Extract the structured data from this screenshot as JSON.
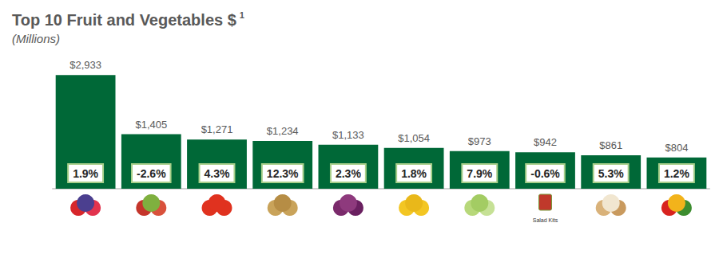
{
  "chart_data": {
    "type": "bar",
    "title": "Top 10 Fruit and Vegetables $",
    "title_note": "1",
    "subtitle": "(Millions)",
    "categories": [
      null,
      null,
      null,
      null,
      null,
      null,
      null,
      "Salad Kits",
      null,
      null
    ],
    "values": [
      2933,
      1405,
      1271,
      1234,
      1133,
      1054,
      973,
      942,
      861,
      804
    ],
    "value_labels": [
      "$2,933",
      "$1,405",
      "$1,271",
      "$1,234",
      "$1,133",
      "$1,054",
      "$973",
      "$942",
      "$861",
      "$804"
    ],
    "annotations": [
      "1.9%",
      "-2.6%",
      "4.3%",
      "12.3%",
      "2.3%",
      "1.8%",
      "7.9%",
      "-0.6%",
      "5.3%",
      "1.2%"
    ],
    "color": "#006837",
    "ylim": [
      0,
      3000
    ],
    "data_labels": true,
    "tick_labels": false,
    "grid": false
  }
}
